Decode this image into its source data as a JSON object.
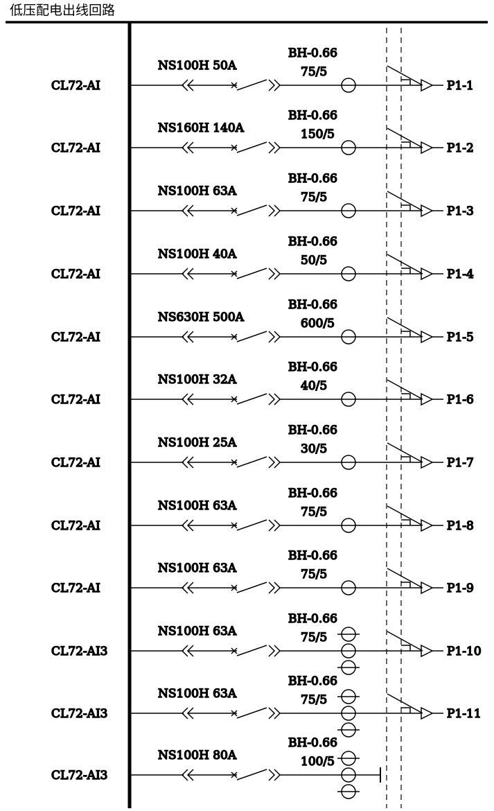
{
  "title": "低压配电出线回路",
  "circuits": [
    {
      "meter": "CL72-AI",
      "breaker": "NS100H 50A",
      "ct_model": "BH-0.66",
      "ct_ratio": "75/5",
      "ct_count": 1,
      "outlet": "P1-1"
    },
    {
      "meter": "CL72-AI",
      "breaker": "NS160H 140A",
      "ct_model": "BH-0.66",
      "ct_ratio": "150/5",
      "ct_count": 1,
      "outlet": "P1-2"
    },
    {
      "meter": "CL72-AI",
      "breaker": "NS100H 63A",
      "ct_model": "BH-0.66",
      "ct_ratio": "75/5",
      "ct_count": 1,
      "outlet": "P1-3"
    },
    {
      "meter": "CL72-AI",
      "breaker": "NS100H 40A",
      "ct_model": "BH-0.66",
      "ct_ratio": "50/5",
      "ct_count": 1,
      "outlet": "P1-4"
    },
    {
      "meter": "CL72-AI",
      "breaker": "NS630H 500A",
      "ct_model": "BH-0.66",
      "ct_ratio": "600/5",
      "ct_count": 1,
      "outlet": "P1-5"
    },
    {
      "meter": "CL72-AI",
      "breaker": "NS100H 32A",
      "ct_model": "BH-0.66",
      "ct_ratio": "40/5",
      "ct_count": 1,
      "outlet": "P1-6"
    },
    {
      "meter": "CL72-AI",
      "breaker": "NS100H 25A",
      "ct_model": "BH-0.66",
      "ct_ratio": "30/5",
      "ct_count": 1,
      "outlet": "P1-7"
    },
    {
      "meter": "CL72-AI",
      "breaker": "NS100H 63A",
      "ct_model": "BH-0.66",
      "ct_ratio": "75/5",
      "ct_count": 1,
      "outlet": "P1-8"
    },
    {
      "meter": "CL72-AI",
      "breaker": "NS100H 63A",
      "ct_model": "BH-0.66",
      "ct_ratio": "75/5",
      "ct_count": 1,
      "outlet": "P1-9"
    },
    {
      "meter": "CL72-AI3",
      "breaker": "NS100H 63A",
      "ct_model": "BH-0.66",
      "ct_ratio": "75/5",
      "ct_count": 3,
      "outlet": "P1-10"
    },
    {
      "meter": "CL72-AI3",
      "breaker": "NS100H 63A",
      "ct_model": "BH-0.66",
      "ct_ratio": "75/5",
      "ct_count": 3,
      "outlet": "P1-11"
    },
    {
      "meter": "CL72-AI3",
      "breaker": "NS100H 80A",
      "ct_model": "BH-0.66",
      "ct_ratio": "100/5",
      "ct_count": 3,
      "outlet": ""
    }
  ]
}
